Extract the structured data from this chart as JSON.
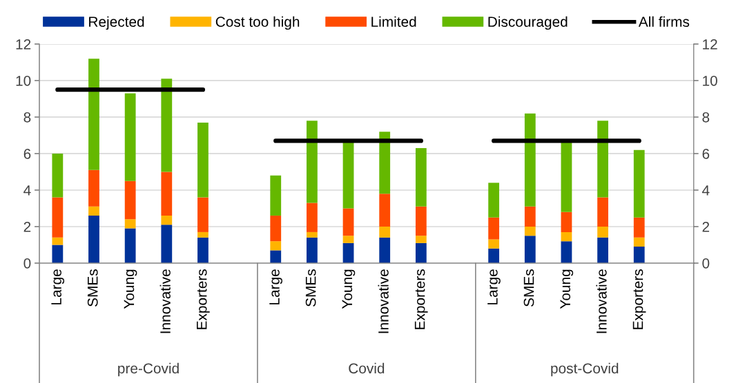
{
  "chart_data": {
    "type": "bar",
    "stacked": true,
    "categories": [
      "Large",
      "SMEs",
      "Young",
      "Innovative",
      "Exporters",
      null,
      "Large",
      "SMEs",
      "Young",
      "Innovative",
      "Exporters",
      null,
      "Large",
      "SMEs",
      "Young",
      "Innovative",
      "Exporters",
      null
    ],
    "series": [
      {
        "name": "Rejected",
        "color": "#003299",
        "values": [
          1.0,
          2.6,
          1.9,
          2.1,
          1.4,
          null,
          0.7,
          1.4,
          1.1,
          1.4,
          1.1,
          null,
          0.8,
          1.5,
          1.2,
          1.4,
          0.9,
          null
        ]
      },
      {
        "name": "Cost too high",
        "color": "#ffb400",
        "values": [
          0.4,
          0.5,
          0.5,
          0.5,
          0.3,
          null,
          0.5,
          0.3,
          0.4,
          0.6,
          0.4,
          null,
          0.5,
          0.5,
          0.5,
          0.6,
          0.5,
          null
        ]
      },
      {
        "name": "Limited",
        "color": "#ff4b00",
        "values": [
          2.2,
          2.0,
          2.1,
          2.4,
          1.9,
          null,
          1.4,
          1.6,
          1.5,
          1.8,
          1.6,
          null,
          1.2,
          1.1,
          1.1,
          1.6,
          1.1,
          null
        ]
      },
      {
        "name": "Discouraged",
        "color": "#65b800",
        "values": [
          2.4,
          6.1,
          4.8,
          5.1,
          4.1,
          null,
          2.2,
          4.5,
          3.6,
          3.4,
          3.2,
          null,
          1.9,
          5.1,
          3.8,
          4.2,
          3.7,
          null
        ]
      },
      {
        "name": "All firms",
        "type": "line",
        "color": "#000000",
        "values": [
          9.5,
          9.5,
          9.5,
          9.5,
          9.5,
          null,
          6.7,
          6.7,
          6.7,
          6.7,
          6.7,
          null,
          6.7,
          6.7,
          6.7,
          6.7,
          6.7,
          null
        ]
      }
    ],
    "annotations": [
      "pre-Covid",
      "Covid",
      "post-Covid"
    ],
    "ylim": [
      0,
      12
    ],
    "yticks": [
      0,
      2,
      4,
      6,
      8,
      10,
      12
    ],
    "y2lim": [
      0,
      12
    ],
    "y2ticks": [
      0,
      2,
      4,
      6,
      8,
      10,
      12
    ],
    "grid": true,
    "legend": "top"
  }
}
